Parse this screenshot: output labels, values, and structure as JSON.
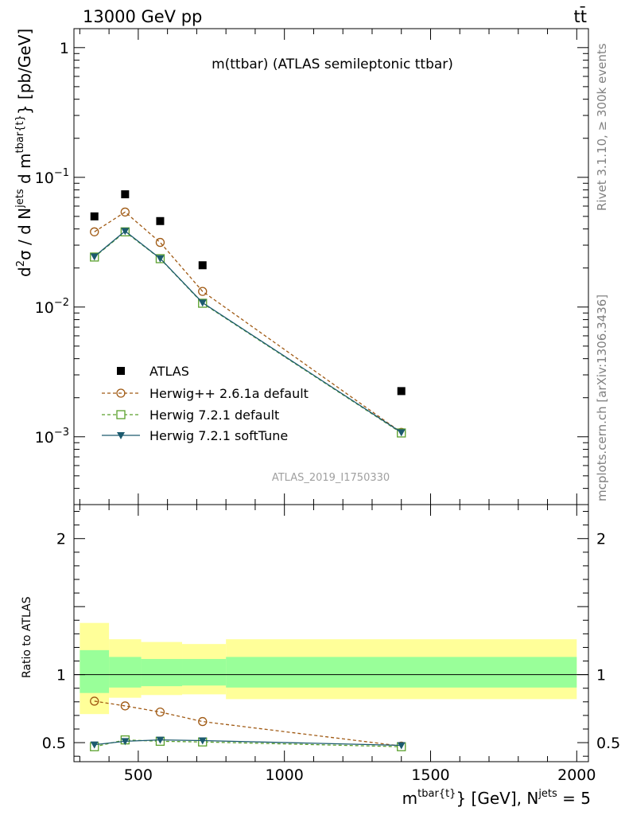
{
  "header": {
    "left": "13000 GeV pp",
    "right": "tt̄"
  },
  "side_labels": {
    "rivet": "Rivet 3.1.10, ≥ 300k events",
    "mcplots": "mcplots.cern.ch [arXiv:1306.3436]"
  },
  "watermark": "ATLAS_2019_I1750330",
  "chart_data": [
    {
      "type": "scatter",
      "title": "m(ttbar) (ATLAS semileptonic ttbar)",
      "ylabel": "d²σ / d N^jets d m^tbar{t} [pb/GeV]",
      "yscale": "log",
      "ylim": [
        0.0003,
        1.4
      ],
      "xlim": [
        280,
        2040
      ],
      "yticks": [
        {
          "value": 0.001,
          "base": "10",
          "exp": "−3"
        },
        {
          "value": 0.01,
          "base": "10",
          "exp": "−2"
        },
        {
          "value": 0.1,
          "base": "10",
          "exp": "−1"
        },
        {
          "value": 1,
          "base": "1",
          "exp": ""
        }
      ],
      "series": [
        {
          "name": "ATLAS",
          "marker": "filled-square",
          "color": "#000000",
          "x": [
            350,
            455,
            575,
            720,
            1400
          ],
          "y": [
            0.05,
            0.074,
            0.046,
            0.021,
            0.00225
          ]
        },
        {
          "name": "Herwig++ 2.6.1a default",
          "marker": "open-circle",
          "color": "#a05a14",
          "line": "dashed",
          "x": [
            350,
            455,
            575,
            720,
            1400
          ],
          "y": [
            0.038,
            0.054,
            0.0315,
            0.0132,
            0.00108
          ]
        },
        {
          "name": "Herwig 7.2.1 default",
          "marker": "open-square",
          "color": "#5aa02c",
          "line": "dashed",
          "x": [
            350,
            455,
            575,
            720,
            1400
          ],
          "y": [
            0.0243,
            0.038,
            0.0236,
            0.0107,
            0.00107
          ]
        },
        {
          "name": "Herwig 7.2.1 softTune",
          "marker": "filled-triangle-down",
          "color": "#1c5a6e",
          "line": "solid",
          "x": [
            350,
            455,
            575,
            720,
            1400
          ],
          "y": [
            0.0245,
            0.0385,
            0.0237,
            0.0108,
            0.00108
          ]
        }
      ]
    },
    {
      "type": "scatter",
      "ylabel": "Ratio to ATLAS",
      "xlabel": "m^tbar{t} [GeV], N^jets = 5",
      "xlim": [
        280,
        2040
      ],
      "ylim": [
        0.36,
        2.25
      ],
      "xticks": [
        {
          "value": 500,
          "label": "500"
        },
        {
          "value": 1000,
          "label": "1000"
        },
        {
          "value": 1500,
          "label": "1500"
        },
        {
          "value": 2000,
          "label": "2000"
        }
      ],
      "yticks": [
        {
          "value": 0.5,
          "label": "0.5"
        },
        {
          "value": 1,
          "label": "1"
        },
        {
          "value": 2,
          "label": "2"
        }
      ],
      "bins": [
        {
          "lo": 300,
          "hi": 400,
          "inner": [
            0.865,
            1.18
          ],
          "outer": [
            0.71,
            1.38
          ]
        },
        {
          "lo": 400,
          "hi": 510,
          "inner": [
            0.905,
            1.13
          ],
          "outer": [
            0.83,
            1.26
          ]
        },
        {
          "lo": 510,
          "hi": 650,
          "inner": [
            0.915,
            1.115
          ],
          "outer": [
            0.85,
            1.24
          ]
        },
        {
          "lo": 650,
          "hi": 800,
          "inner": [
            0.92,
            1.115
          ],
          "outer": [
            0.855,
            1.225
          ]
        },
        {
          "lo": 800,
          "hi": 2000,
          "inner": [
            0.905,
            1.13
          ],
          "outer": [
            0.82,
            1.26
          ]
        }
      ],
      "series": [
        {
          "name": "Herwig++ 2.6.1a default",
          "marker": "open-circle",
          "color": "#a05a14",
          "line": "dashed",
          "x": [
            350,
            455,
            575,
            720,
            1400
          ],
          "y": [
            0.805,
            0.77,
            0.725,
            0.655,
            0.475
          ]
        },
        {
          "name": "Herwig 7.2.1 default",
          "marker": "open-square",
          "color": "#5aa02c",
          "line": "dashed",
          "x": [
            350,
            455,
            575,
            720,
            1400
          ],
          "y": [
            0.47,
            0.52,
            0.51,
            0.505,
            0.47
          ]
        },
        {
          "name": "Herwig 7.2.1 softTune",
          "marker": "filled-triangle-down",
          "color": "#1c5a6e",
          "line": "solid",
          "x": [
            350,
            455,
            575,
            720,
            1400
          ],
          "y": [
            0.485,
            0.51,
            0.52,
            0.515,
            0.48
          ]
        }
      ]
    }
  ]
}
